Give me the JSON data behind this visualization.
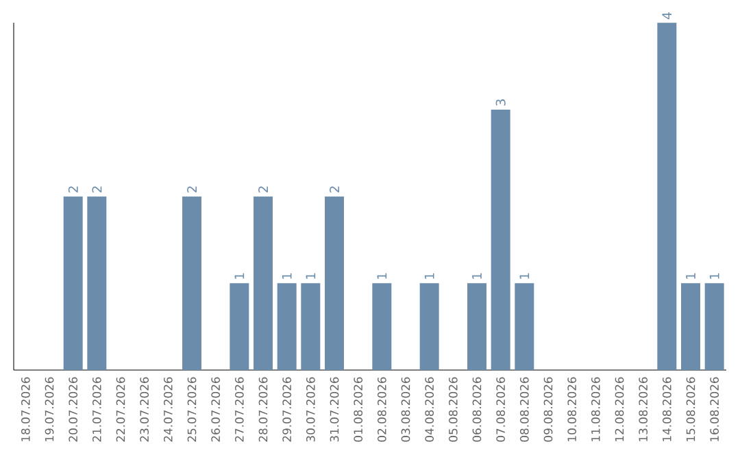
{
  "chart_data": {
    "type": "bar",
    "categories": [
      "18.07.2026",
      "19.07.2026",
      "20.07.2026",
      "21.07.2026",
      "22.07.2026",
      "23.07.2026",
      "24.07.2026",
      "25.07.2026",
      "26.07.2026",
      "27.07.2026",
      "28.07.2026",
      "29.07.2026",
      "30.07.2026",
      "31.07.2026",
      "01.08.2026",
      "02.08.2026",
      "03.08.2026",
      "04.08.2026",
      "05.08.2026",
      "06.08.2026",
      "07.08.2026",
      "08.08.2026",
      "09.08.2026",
      "10.08.2026",
      "11.08.2026",
      "12.08.2026",
      "13.08.2026",
      "14.08.2026",
      "15.08.2026",
      "16.08.2026"
    ],
    "values": [
      0,
      0,
      2,
      2,
      0,
      0,
      0,
      2,
      0,
      1,
      2,
      1,
      1,
      2,
      0,
      1,
      0,
      1,
      0,
      1,
      3,
      1,
      0,
      0,
      0,
      0,
      0,
      4,
      1,
      1
    ],
    "value_labels": [
      null,
      null,
      "2",
      "2",
      null,
      null,
      null,
      "2",
      null,
      "1",
      "2",
      "1",
      "1",
      "2",
      null,
      "1",
      null,
      "1",
      null,
      "1",
      "3",
      "1",
      null,
      null,
      null,
      null,
      null,
      "4",
      "1",
      "1"
    ],
    "color": "#6b8caa",
    "tick_labels": "x"
  }
}
